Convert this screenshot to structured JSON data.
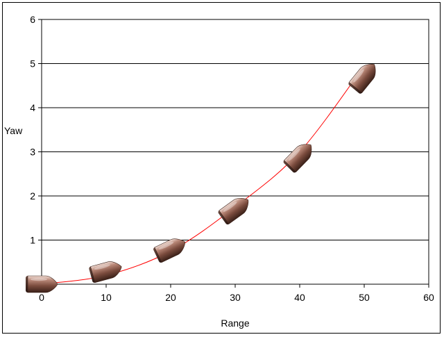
{
  "chart_data": {
    "type": "scatter",
    "title": "",
    "xlabel": "Range",
    "ylabel": "Yaw",
    "xlim": [
      0,
      60
    ],
    "ylim": [
      0,
      6
    ],
    "x_ticks": [
      "0",
      "10",
      "20",
      "30",
      "40",
      "50",
      "60"
    ],
    "y_ticks": [
      "0",
      "1",
      "2",
      "3",
      "4",
      "5",
      "6"
    ],
    "grid": "horizontal major gridlines",
    "legend": "none",
    "marker": "bullet-icon",
    "colors": {
      "trendline": "#ff0000",
      "grid": "#000000",
      "marker": "#8a5a4a"
    },
    "series": [
      {
        "values": [
          {
            "x": 0,
            "y": 0
          },
          {
            "x": 10,
            "y": 0.3
          },
          {
            "x": 20,
            "y": 0.8
          },
          {
            "x": 30,
            "y": 1.7
          },
          {
            "x": 40,
            "y": 2.9
          },
          {
            "x": 50,
            "y": 4.7
          }
        ]
      }
    ],
    "trendline": {
      "type": "polynomial",
      "values": [
        {
          "x": 0,
          "y": 0
        },
        {
          "x": 10,
          "y": 0.2
        },
        {
          "x": 20,
          "y": 0.75
        },
        {
          "x": 30,
          "y": 1.75
        },
        {
          "x": 40,
          "y": 3.0
        },
        {
          "x": 50,
          "y": 4.95
        }
      ]
    }
  }
}
